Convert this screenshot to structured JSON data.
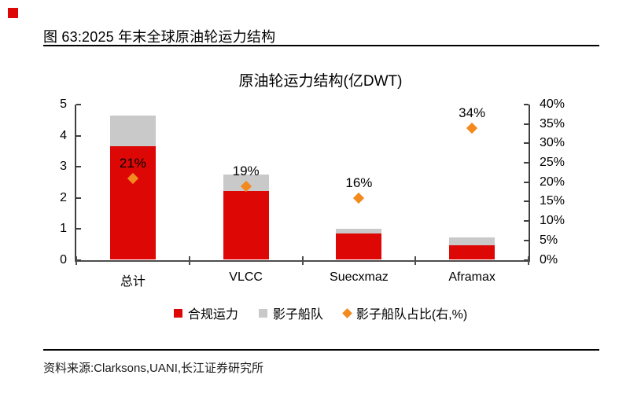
{
  "figure": {
    "header": "图 63:2025 年末全球原油轮运力结构",
    "source": "资料来源:Clarksons,UANI,长江证券研究所"
  },
  "colors": {
    "compliant_red": "#dd0806",
    "shadow_gray": "#c9c9c9",
    "marker_orange": "#f28a1e",
    "axis_line": "#3f3f3f",
    "corner_marker": "#dd0806"
  },
  "chart_data": {
    "type": "bar",
    "subtype": "stacked-bar-with-secondary-axis-scatter",
    "title": "原油轮运力结构(亿DWT)",
    "categories": [
      "总计",
      "VLCC",
      "Suecxmaz",
      "Aframax"
    ],
    "series": [
      {
        "name": "合规运力",
        "type": "bar",
        "marker": "square",
        "color": "#dd0806",
        "axis": "left",
        "values": [
          3.67,
          2.22,
          0.85,
          0.47
        ]
      },
      {
        "name": "影子船队",
        "type": "bar",
        "marker": "square",
        "color": "#c9c9c9",
        "axis": "left",
        "values": [
          0.98,
          0.52,
          0.16,
          0.24
        ]
      },
      {
        "name": "影子船队占比(右,%)",
        "type": "scatter",
        "marker": "diamond",
        "color": "#f28a1e",
        "axis": "right",
        "values": [
          21,
          19,
          16,
          34
        ],
        "labels": [
          "21%",
          "19%",
          "16%",
          "34%"
        ]
      }
    ],
    "left_axis": {
      "min": 0,
      "max": 5,
      "ticks": [
        "0",
        "1",
        "2",
        "3",
        "4",
        "5"
      ]
    },
    "right_axis": {
      "min": 0,
      "max": 40,
      "ticks": [
        "0%",
        "5%",
        "10%",
        "15%",
        "20%",
        "25%",
        "30%",
        "35%",
        "40%"
      ]
    },
    "stacked": true,
    "grid": false,
    "legend_position": "bottom"
  }
}
